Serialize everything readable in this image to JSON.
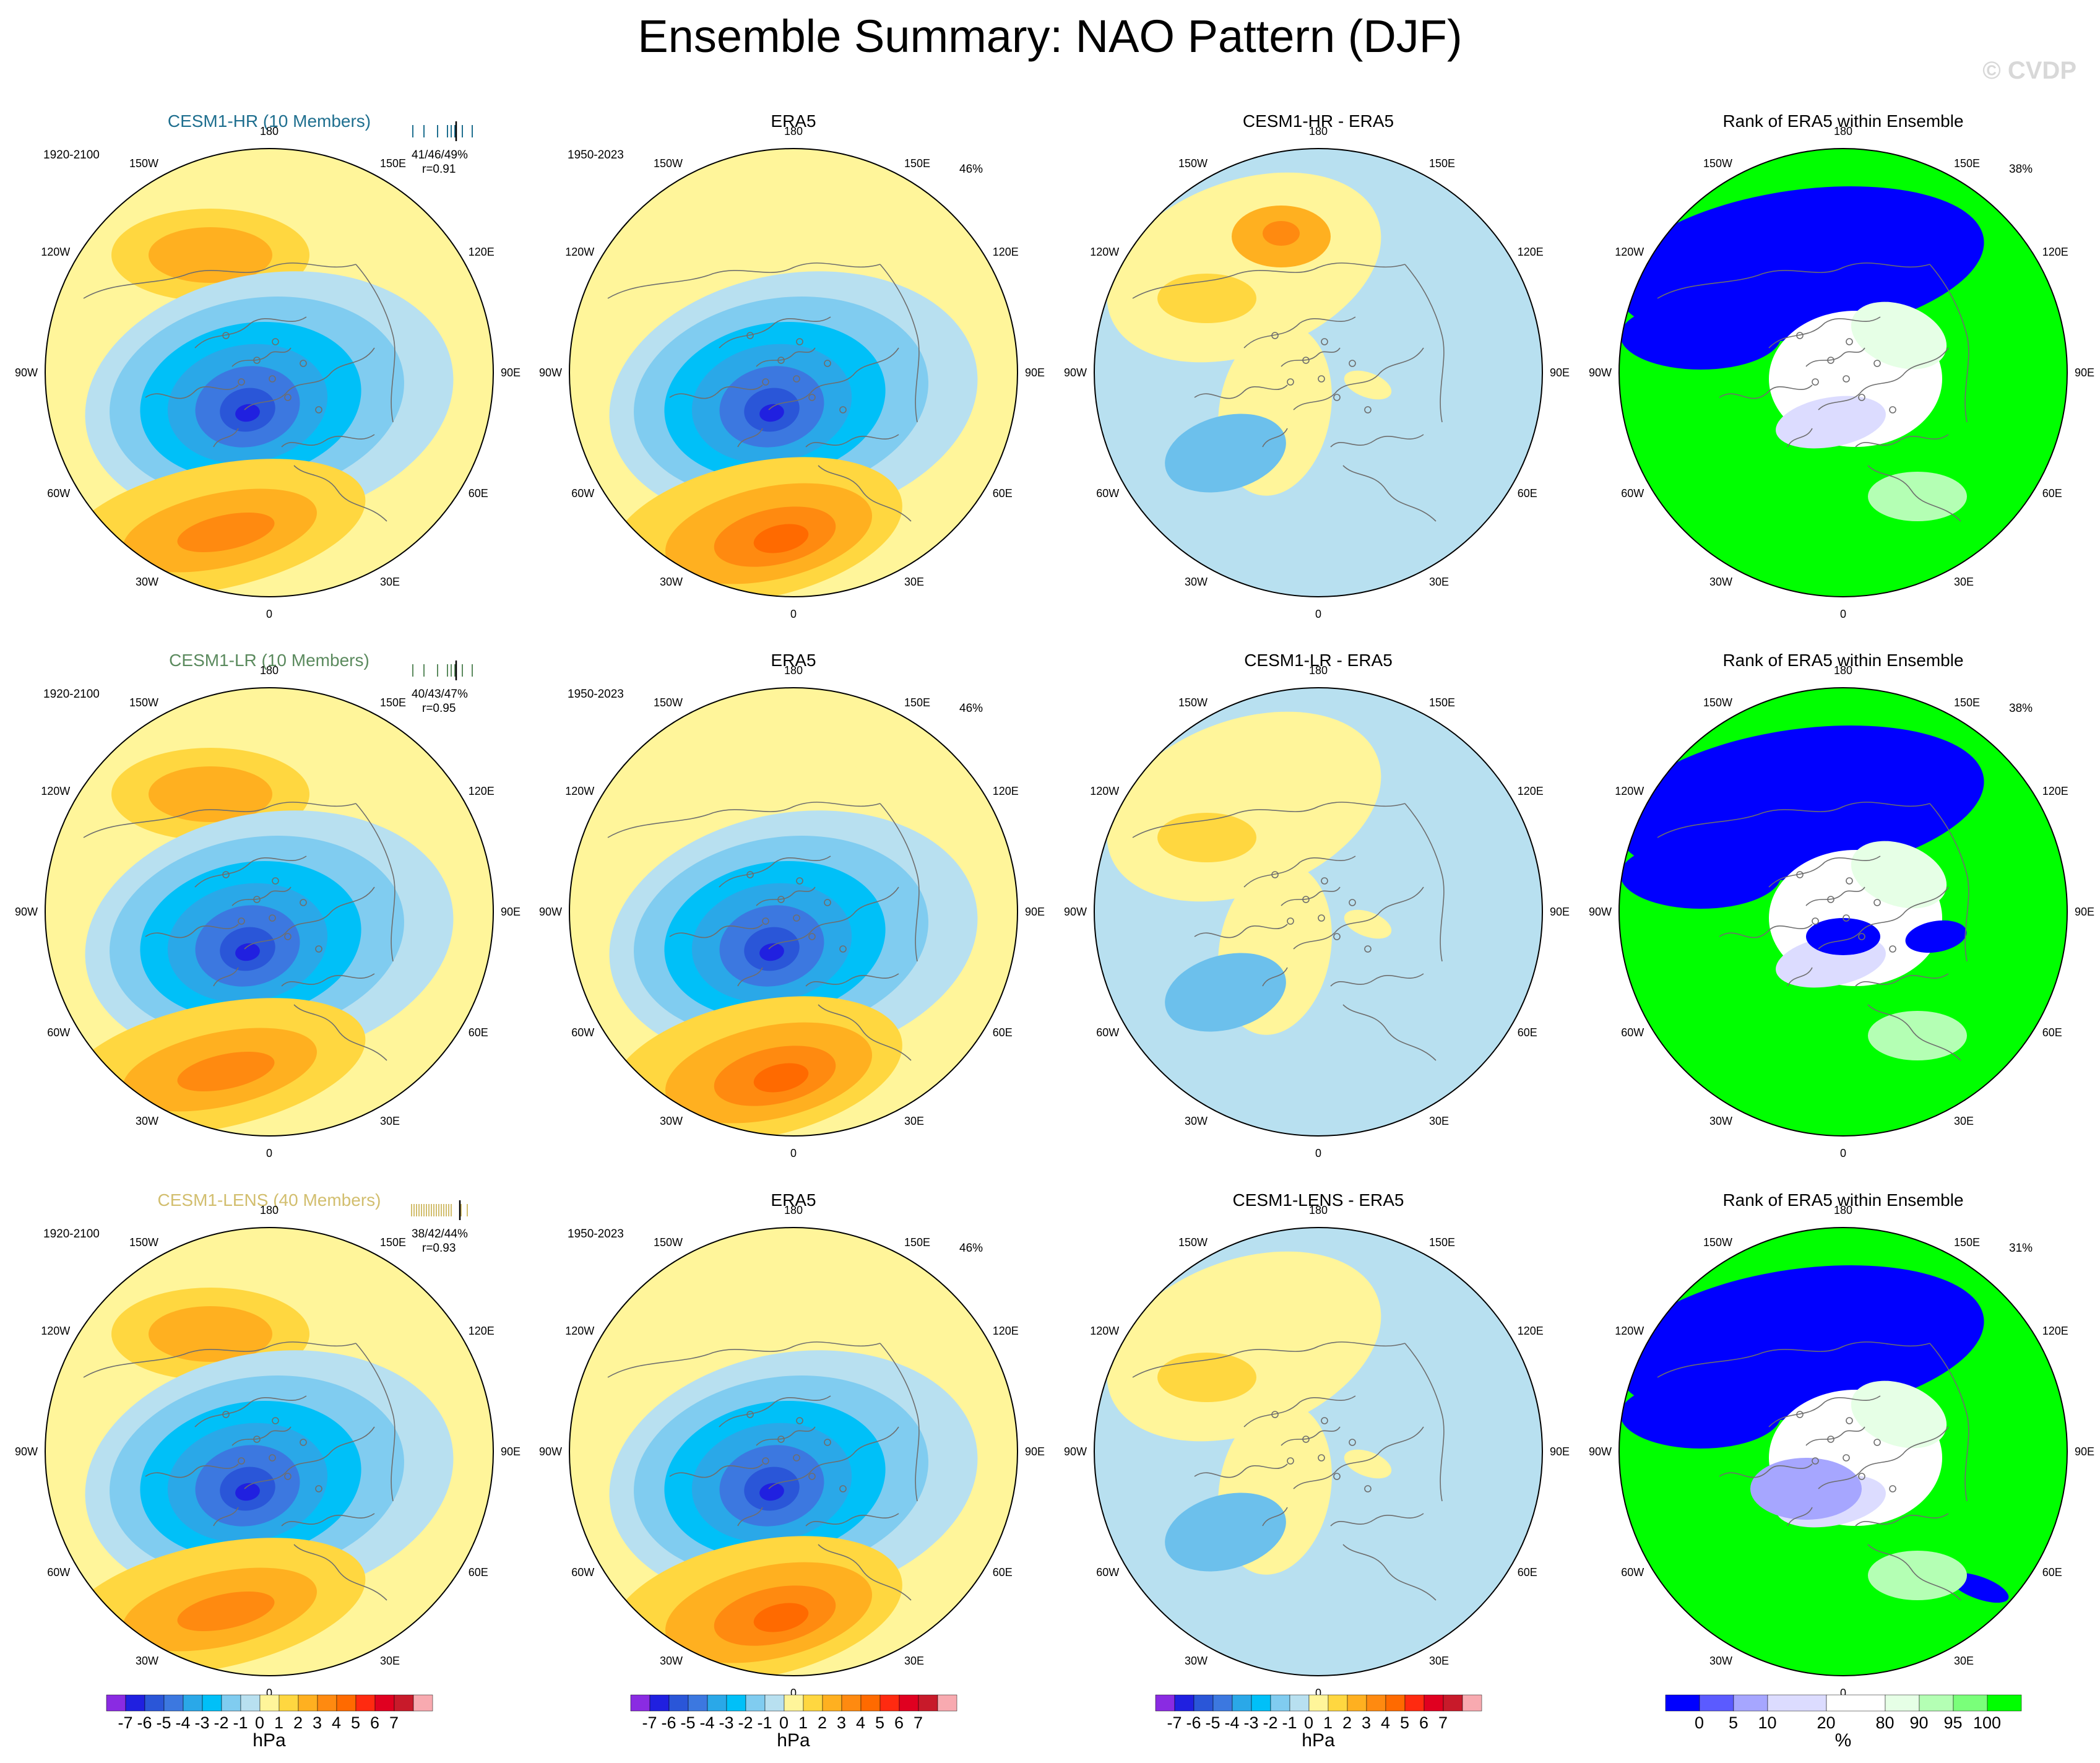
{
  "title": "Ensemble Summary: NAO Pattern (DJF)",
  "watermark": "© CVDP",
  "colors": {
    "model_hr": "#1f6f8f",
    "model_lr": "#5b8a5e",
    "model_lens": "#d2be6e",
    "neg": [
      "#8a2be2",
      "#2020e0",
      "#2a56d8",
      "#3c78e0",
      "#2aa8e8",
      "#00c0f8",
      "#80ccf0",
      "#b8e0f0"
    ],
    "pos": [
      "#fff59a",
      "#ffd740",
      "#ffb020",
      "#ff8a10",
      "#ff6a00",
      "#ff2a10",
      "#e00020",
      "#c81a2a",
      "#f8aab0"
    ],
    "rank": [
      "#0000ff",
      "#5b5bff",
      "#a6a6ff",
      "#dcdcff",
      "#ffffff",
      "#e6ffe6",
      "#b4ffb4",
      "#7aff7a",
      "#00ff00"
    ]
  },
  "rows": [
    {
      "model": {
        "title": "CESM1-HR (10 Members)",
        "years": "1920-2100",
        "stats": "41/46/49%",
        "corr": "r=0.91"
      },
      "obs": {
        "title": "ERA5",
        "years": "1950-2023",
        "pct": "46%"
      },
      "diff": {
        "title": "CESM1-HR - ERA5"
      },
      "rank": {
        "title": "Rank of ERA5 within Ensemble",
        "pct": "38%"
      }
    },
    {
      "model": {
        "title": "CESM1-LR (10 Members)",
        "years": "1920-2100",
        "stats": "40/43/47%",
        "corr": "r=0.95"
      },
      "obs": {
        "title": "ERA5",
        "years": "1950-2023",
        "pct": "46%"
      },
      "diff": {
        "title": "CESM1-LR - ERA5"
      },
      "rank": {
        "title": "Rank of ERA5 within Ensemble",
        "pct": "38%"
      }
    },
    {
      "model": {
        "title": "CESM1-LENS (40 Members)",
        "years": "1920-2100",
        "stats": "38/42/44%",
        "corr": "r=0.93"
      },
      "obs": {
        "title": "ERA5",
        "years": "1950-2023",
        "pct": "46%"
      },
      "diff": {
        "title": "CESM1-LENS - ERA5"
      },
      "rank": {
        "title": "Rank of ERA5 within Ensemble",
        "pct": "31%"
      }
    }
  ],
  "longitude_labels": [
    "180",
    "150E",
    "120E",
    "90E",
    "60E",
    "30E",
    "0",
    "30W",
    "60W",
    "90W",
    "120W",
    "150W"
  ],
  "colorbar_hpa": {
    "labels": [
      "-7",
      "-6",
      "-5",
      "-4",
      "-3",
      "-2",
      "-1",
      "0",
      "1",
      "2",
      "3",
      "4",
      "5",
      "6",
      "7"
    ],
    "unit": "hPa"
  },
  "colorbar_rank": {
    "labels": [
      "0",
      "5",
      "10",
      "20",
      "80",
      "90",
      "95",
      "100"
    ],
    "unit": "%"
  }
}
